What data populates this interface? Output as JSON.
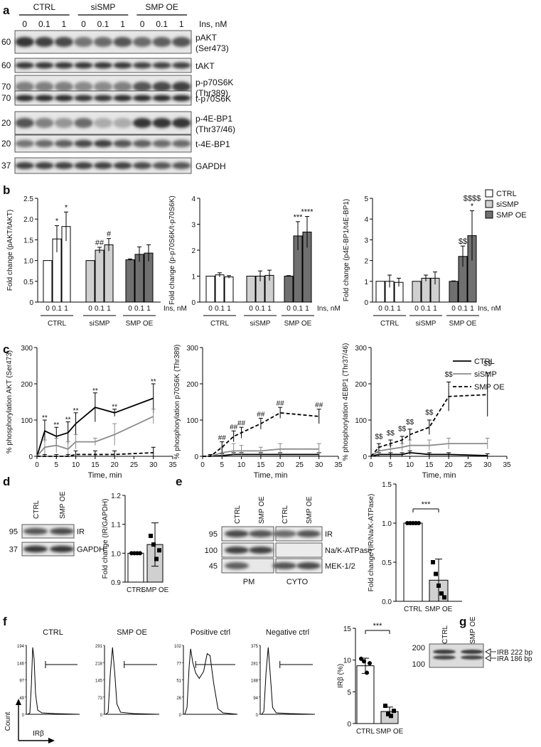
{
  "panel_labels": {
    "a": "a",
    "b": "b",
    "c": "c",
    "d": "d",
    "e": "e",
    "f": "f",
    "g": "g"
  },
  "blot_a": {
    "groups": [
      "CTRL",
      "siSMP",
      "SMP OE"
    ],
    "ins_values": [
      "0",
      "0.1",
      "1",
      "0",
      "0.1",
      "1",
      "0",
      "0.1",
      "1"
    ],
    "ins_label": "Ins, nM",
    "rows": [
      {
        "mw": "60",
        "label": "pAKT",
        "label2": "(Ser473)",
        "levels": [
          0.85,
          0.8,
          0.75,
          0.55,
          0.6,
          0.7,
          0.6,
          0.65,
          0.7
        ]
      },
      {
        "mw": "60",
        "label": "tAKT",
        "label2": "",
        "levels": [
          0.85,
          0.85,
          0.85,
          0.85,
          0.85,
          0.85,
          0.8,
          0.8,
          0.8
        ]
      },
      {
        "mw": "70",
        "label": "p-p70S6K",
        "label2": "(Thr389)",
        "levels": [
          0.5,
          0.5,
          0.5,
          0.45,
          0.45,
          0.5,
          0.7,
          0.75,
          0.8
        ]
      },
      {
        "mw": "70",
        "label": "t-p70S6K",
        "label2": "",
        "levels": [
          0.9,
          0.9,
          0.9,
          0.85,
          0.85,
          0.9,
          0.9,
          0.9,
          0.9
        ]
      },
      {
        "mw": "20",
        "label": "p-4E-BP1",
        "label2": "(Thr37/46)",
        "levels": [
          0.7,
          0.5,
          0.4,
          0.6,
          0.3,
          0.3,
          0.85,
          0.85,
          0.85
        ]
      },
      {
        "mw": "20",
        "label": "t-4E-BP1",
        "label2": "",
        "levels": [
          0.55,
          0.6,
          0.65,
          0.75,
          0.8,
          0.7,
          0.65,
          0.6,
          0.6
        ]
      },
      {
        "mw": "37",
        "label": "GAPDH",
        "label2": "",
        "levels": [
          0.8,
          0.8,
          0.8,
          0.8,
          0.8,
          0.8,
          0.75,
          0.7,
          0.7
        ]
      }
    ]
  },
  "legend_b": [
    "CTRL",
    "siSMP",
    "SMP OE"
  ],
  "legend_c": [
    "CTRL",
    "siSMP",
    "SMP OE"
  ],
  "colors": {
    "ctrl": "#ffffff",
    "sismp": "#d0d0d0",
    "smpoe": "#707070",
    "line_ctrl": "#000000",
    "line_sismp": "#8c8c8c",
    "line_smpoe": "#000000"
  },
  "chart_data": [
    {
      "type": "bar",
      "panel": "b-1",
      "ylabel": "Fold change (pAKT/tAKT)",
      "ylim": [
        0,
        2.5
      ],
      "yticks": [
        "0",
        "0.5",
        "1.0",
        "1.5",
        "2.0",
        "2.5"
      ],
      "groups": [
        "CTRL",
        "siSMP",
        "SMP OE"
      ],
      "x_ticks": [
        "0",
        "0.1",
        "1"
      ],
      "x_unit": "Ins, nM",
      "values": [
        [
          1.0,
          1.52,
          1.82
        ],
        [
          1.0,
          1.25,
          1.38
        ],
        [
          1.02,
          1.15,
          1.18
        ]
      ],
      "errors": [
        [
          0.0,
          0.32,
          0.35
        ],
        [
          0.0,
          0.07,
          0.15
        ],
        [
          0.02,
          0.18,
          0.2
        ]
      ],
      "annotations": [
        [
          "",
          "*",
          "*"
        ],
        [
          "",
          "##",
          "#"
        ],
        [
          "",
          "",
          ""
        ]
      ]
    },
    {
      "type": "bar",
      "panel": "b-2",
      "ylabel": "Fold change (p-p70S6K/t-p70S6K)",
      "ylim": [
        0,
        4
      ],
      "yticks": [
        "0",
        "1",
        "2",
        "3",
        "4"
      ],
      "groups": [
        "CTRL",
        "siSMP",
        "SMP OE"
      ],
      "x_ticks": [
        "0",
        "0.1",
        "1"
      ],
      "x_unit": "Ins, nM",
      "values": [
        [
          1.0,
          1.05,
          0.97
        ],
        [
          1.0,
          1.0,
          1.03
        ],
        [
          1.0,
          2.55,
          2.7
        ]
      ],
      "errors": [
        [
          0.0,
          0.08,
          0.05
        ],
        [
          0.0,
          0.2,
          0.2
        ],
        [
          0.02,
          0.55,
          0.6
        ]
      ],
      "annotations": [
        [
          "",
          "",
          ""
        ],
        [
          "",
          "",
          ""
        ],
        [
          "",
          "***",
          "****"
        ]
      ]
    },
    {
      "type": "bar",
      "panel": "b-3",
      "ylabel": "Fold change (p4E-BP1/t4E-BP1)",
      "ylim": [
        0,
        5
      ],
      "yticks": [
        "0",
        "1",
        "2",
        "3",
        "4",
        "5"
      ],
      "groups": [
        "CTRL",
        "siSMP",
        "SMP OE"
      ],
      "x_ticks": [
        "0",
        "0.1",
        "1"
      ],
      "x_unit": "Ins, nM",
      "values": [
        [
          1.0,
          1.0,
          0.95
        ],
        [
          1.0,
          1.15,
          1.15
        ],
        [
          1.0,
          2.2,
          3.2
        ]
      ],
      "errors": [
        [
          0.0,
          0.3,
          0.2
        ],
        [
          0.0,
          0.15,
          0.3
        ],
        [
          0.02,
          0.5,
          1.2
        ]
      ],
      "annotations": [
        [
          "",
          "",
          ""
        ],
        [
          "",
          "",
          ""
        ],
        [
          "",
          "$$",
          "*"
        ]
      ],
      "extra_annotation": "$$$$"
    },
    {
      "type": "line",
      "panel": "c-1",
      "ylabel": "% phosphorylation AKT (Ser473)",
      "xlabel": "Time, min",
      "xlim": [
        0,
        35
      ],
      "ylim": [
        0,
        300
      ],
      "xticks": [
        "0",
        "5",
        "10",
        "15",
        "20",
        "25",
        "30",
        "35"
      ],
      "yticks": [
        "0",
        "100",
        "200",
        "300"
      ],
      "x": [
        0,
        2,
        5,
        8,
        10,
        15,
        20,
        30
      ],
      "series": [
        {
          "name": "CTRL",
          "values": [
            0,
            70,
            55,
            65,
            90,
            135,
            120,
            160
          ],
          "errors": [
            0,
            30,
            25,
            30,
            30,
            40,
            10,
            40
          ]
        },
        {
          "name": "siSMP",
          "values": [
            0,
            25,
            30,
            20,
            40,
            40,
            60,
            110
          ],
          "errors": [
            0,
            20,
            20,
            20,
            20,
            10,
            30,
            20
          ]
        },
        {
          "name": "SMP OE",
          "values": [
            0,
            0,
            0,
            0,
            5,
            5,
            5,
            10
          ],
          "errors": [
            0,
            5,
            5,
            5,
            10,
            10,
            10,
            15
          ]
        }
      ],
      "annotations": [
        {
          "x": 2,
          "y": 100,
          "text": "**"
        },
        {
          "x": 5,
          "y": 80,
          "text": "**"
        },
        {
          "x": 8,
          "y": 95,
          "text": "**"
        },
        {
          "x": 10,
          "y": 120,
          "text": "**"
        },
        {
          "x": 15,
          "y": 175,
          "text": "**"
        },
        {
          "x": 20,
          "y": 130,
          "text": "**"
        },
        {
          "x": 30,
          "y": 200,
          "text": "**"
        }
      ]
    },
    {
      "type": "line",
      "panel": "c-2",
      "ylabel": "% phosphorylation p70S6K (Thr389)",
      "xlabel": "Time, min",
      "xlim": [
        0,
        35
      ],
      "ylim": [
        0,
        300
      ],
      "xticks": [
        "0",
        "5",
        "10",
        "15",
        "20",
        "25",
        "30",
        "35"
      ],
      "yticks": [
        "0",
        "100",
        "200",
        "300"
      ],
      "x": [
        0,
        2,
        5,
        8,
        10,
        15,
        20,
        30
      ],
      "series": [
        {
          "name": "CTRL",
          "values": [
            0,
            0,
            2,
            5,
            5,
            5,
            5,
            5
          ],
          "errors": [
            0,
            2,
            5,
            5,
            5,
            5,
            5,
            5
          ]
        },
        {
          "name": "siSMP",
          "values": [
            0,
            0,
            10,
            15,
            15,
            15,
            20,
            20
          ],
          "errors": [
            0,
            5,
            15,
            20,
            15,
            10,
            15,
            15
          ]
        },
        {
          "name": "SMP OE",
          "values": [
            0,
            0,
            25,
            55,
            65,
            90,
            120,
            110
          ],
          "errors": [
            0,
            5,
            15,
            15,
            15,
            15,
            15,
            20
          ]
        }
      ],
      "annotations": [
        {
          "x": 5,
          "y": 45,
          "text": "##"
        },
        {
          "x": 8,
          "y": 75,
          "text": "##"
        },
        {
          "x": 10,
          "y": 85,
          "text": "##"
        },
        {
          "x": 15,
          "y": 110,
          "text": "##"
        },
        {
          "x": 20,
          "y": 140,
          "text": "##"
        },
        {
          "x": 30,
          "y": 135,
          "text": "##"
        }
      ]
    },
    {
      "type": "line",
      "panel": "c-3",
      "ylabel": "% phosphorylation 4EBP1 (Thr37/46)",
      "xlabel": "Time, min",
      "xlim": [
        0,
        35
      ],
      "ylim": [
        0,
        300
      ],
      "xticks": [
        "0",
        "5",
        "10",
        "15",
        "20",
        "25",
        "30",
        "35"
      ],
      "yticks": [
        "0",
        "100",
        "200",
        "300"
      ],
      "x": [
        0,
        2,
        5,
        8,
        10,
        15,
        20,
        30
      ],
      "series": [
        {
          "name": "CTRL",
          "values": [
            0,
            5,
            5,
            5,
            10,
            5,
            5,
            2
          ],
          "errors": [
            0,
            5,
            5,
            5,
            5,
            5,
            5,
            5
          ]
        },
        {
          "name": "siSMP",
          "values": [
            0,
            15,
            20,
            25,
            30,
            30,
            35,
            35
          ],
          "errors": [
            0,
            10,
            10,
            10,
            15,
            15,
            15,
            15
          ]
        },
        {
          "name": "SMP OE",
          "values": [
            0,
            25,
            35,
            45,
            60,
            80,
            165,
            170
          ],
          "errors": [
            0,
            10,
            10,
            10,
            15,
            20,
            40,
            60
          ]
        }
      ],
      "annotations": [
        {
          "x": 2,
          "y": 48,
          "text": "$$"
        },
        {
          "x": 5,
          "y": 58,
          "text": "$$"
        },
        {
          "x": 8,
          "y": 70,
          "text": "$$"
        },
        {
          "x": 10,
          "y": 88,
          "text": "$$"
        },
        {
          "x": 15,
          "y": 115,
          "text": "$$"
        },
        {
          "x": 20,
          "y": 220,
          "text": "$$"
        },
        {
          "x": 30,
          "y": 250,
          "text": "$$"
        }
      ]
    },
    {
      "type": "bar",
      "panel": "d",
      "ylabel": "Fold change (IR/GAPDH)",
      "ylim": [
        0.9,
        1.2
      ],
      "yticks": [
        "0.9",
        "1.0",
        "1.1",
        "1.2"
      ],
      "categories": [
        "CTRL",
        "SMP OE"
      ],
      "values": [
        1.0,
        1.03
      ],
      "errors": [
        0.0,
        0.075
      ],
      "points": [
        [
          1.0,
          1.0,
          1.0,
          1.0
        ],
        [
          1.06,
          1.03,
          0.98,
          1.01
        ]
      ]
    },
    {
      "type": "bar",
      "panel": "e",
      "ylabel": "Fold change (IR/Na/K-ATPase)",
      "ylim": [
        0,
        1.5
      ],
      "yticks": [
        "0.0",
        "0.5",
        "1.0",
        "1.5"
      ],
      "categories": [
        "CTRL",
        "SMP OE"
      ],
      "values": [
        1.0,
        0.27
      ],
      "errors": [
        0.0,
        0.27
      ],
      "points": [
        [
          1.0,
          1.0,
          1.0,
          1.0,
          1.0
        ],
        [
          0.5,
          0.35,
          0.2,
          0.1,
          0.05
        ]
      ],
      "significance": "***"
    },
    {
      "type": "bar",
      "panel": "f",
      "ylabel": "IRβ (%)",
      "ylim": [
        0,
        15
      ],
      "yticks": [
        "0",
        "5",
        "10",
        "15"
      ],
      "categories": [
        "CTRL",
        "SMP OE"
      ],
      "values": [
        9.1,
        1.9
      ],
      "errors": [
        1.2,
        0.7
      ],
      "points": [
        [
          10.2,
          9.8,
          8.0,
          9.5
        ],
        [
          2.8,
          1.5,
          1.2,
          2.0
        ]
      ],
      "significance": "***"
    }
  ],
  "blot_d": {
    "cols": [
      "CTRL",
      "SMP OE"
    ],
    "rows": [
      {
        "mw": "95",
        "label": "IR"
      },
      {
        "mw": "37",
        "label": "GAPDH"
      }
    ]
  },
  "blot_e": {
    "cols": [
      "CTRL",
      "SMP OE",
      "CTRL",
      "SMP OE"
    ],
    "rows": [
      {
        "mw": "95",
        "label": "IR"
      },
      {
        "mw": "100",
        "label": "Na/K-ATPase"
      },
      {
        "mw": "45",
        "label": "MEK-1/2"
      }
    ],
    "fractions": [
      "PM",
      "CYTO"
    ]
  },
  "flow_f": {
    "titles": [
      "CTRL",
      "SMP OE",
      "Positive ctrl",
      "Negative ctrl"
    ],
    "yticks": [
      [
        "194",
        "146",
        "97",
        "49",
        "0"
      ],
      [
        "291",
        "218",
        "145",
        "73",
        "0"
      ],
      [
        "102",
        "77",
        "51",
        "26",
        "0"
      ],
      [
        "375",
        "281",
        "188",
        "94",
        "0"
      ]
    ],
    "count_label": "Count",
    "axis_label": "IRβ"
  },
  "gel_g": {
    "cols": [
      "CTRL",
      "SMP OE"
    ],
    "ladder": [
      "200",
      "100"
    ],
    "bands": [
      "IRB 222 bp",
      "IRA 186 bp"
    ]
  }
}
